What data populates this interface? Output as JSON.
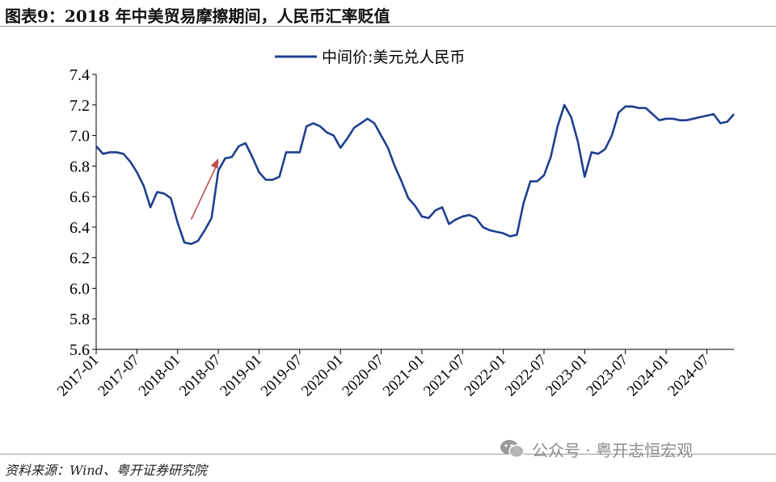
{
  "header": {
    "title": "图表9：2018 年中美贸易摩擦期间，人民币汇率贬值"
  },
  "footer": {
    "source": "资料来源：Wind、粤开证券研究院"
  },
  "watermark": {
    "text": "公众号 · 粤开志恒宏观",
    "icon": "wechat-icon"
  },
  "chart_data": {
    "type": "line",
    "title": "",
    "xlabel": "",
    "ylabel": "",
    "x_tick_labels": [
      "2017-01",
      "2017-07",
      "2018-01",
      "2018-07",
      "2019-01",
      "2019-07",
      "2020-01",
      "2020-07",
      "2021-01",
      "2021-07",
      "2022-01",
      "2022-07",
      "2023-01",
      "2023-07",
      "2024-01",
      "2024-07"
    ],
    "y_tick_labels": [
      "5.6",
      "5.8",
      "6.0",
      "6.2",
      "6.4",
      "6.6",
      "6.8",
      "7.0",
      "7.2",
      "7.4"
    ],
    "ylim": [
      5.6,
      7.4
    ],
    "xlim": [
      "2017-01",
      "2024-11"
    ],
    "grid": false,
    "legend": {
      "position": "top-center",
      "entries": [
        "中间价:美元兑人民币"
      ]
    },
    "annotation": {
      "type": "arrow",
      "color": "#c0504d",
      "from": [
        "2018-03",
        6.45
      ],
      "to": [
        "2018-07",
        6.85
      ]
    },
    "series": [
      {
        "name": "中间价:美元兑人民币",
        "color": "#1f3f8f",
        "points": [
          [
            "2017-01",
            6.93
          ],
          [
            "2017-02",
            6.88
          ],
          [
            "2017-03",
            6.89
          ],
          [
            "2017-04",
            6.89
          ],
          [
            "2017-05",
            6.88
          ],
          [
            "2017-06",
            6.83
          ],
          [
            "2017-07",
            6.76
          ],
          [
            "2017-08",
            6.67
          ],
          [
            "2017-09",
            6.53
          ],
          [
            "2017-10",
            6.63
          ],
          [
            "2017-11",
            6.62
          ],
          [
            "2017-12",
            6.59
          ],
          [
            "2018-01",
            6.43
          ],
          [
            "2018-02",
            6.3
          ],
          [
            "2018-03",
            6.29
          ],
          [
            "2018-04",
            6.31
          ],
          [
            "2018-05",
            6.38
          ],
          [
            "2018-06",
            6.46
          ],
          [
            "2018-07",
            6.77
          ],
          [
            "2018-08",
            6.85
          ],
          [
            "2018-09",
            6.86
          ],
          [
            "2018-10",
            6.93
          ],
          [
            "2018-11",
            6.95
          ],
          [
            "2018-12",
            6.86
          ],
          [
            "2019-01",
            6.76
          ],
          [
            "2019-02",
            6.71
          ],
          [
            "2019-03",
            6.71
          ],
          [
            "2019-04",
            6.73
          ],
          [
            "2019-05",
            6.89
          ],
          [
            "2019-06",
            6.89
          ],
          [
            "2019-07",
            6.89
          ],
          [
            "2019-08",
            7.06
          ],
          [
            "2019-09",
            7.08
          ],
          [
            "2019-10",
            7.06
          ],
          [
            "2019-11",
            7.02
          ],
          [
            "2019-12",
            7.0
          ],
          [
            "2020-01",
            6.92
          ],
          [
            "2020-02",
            6.98
          ],
          [
            "2020-03",
            7.05
          ],
          [
            "2020-04",
            7.08
          ],
          [
            "2020-05",
            7.11
          ],
          [
            "2020-06",
            7.08
          ],
          [
            "2020-07",
            7.0
          ],
          [
            "2020-08",
            6.92
          ],
          [
            "2020-09",
            6.8
          ],
          [
            "2020-10",
            6.7
          ],
          [
            "2020-11",
            6.59
          ],
          [
            "2020-12",
            6.54
          ],
          [
            "2021-01",
            6.47
          ],
          [
            "2021-02",
            6.46
          ],
          [
            "2021-03",
            6.51
          ],
          [
            "2021-04",
            6.53
          ],
          [
            "2021-05",
            6.42
          ],
          [
            "2021-06",
            6.45
          ],
          [
            "2021-07",
            6.47
          ],
          [
            "2021-08",
            6.48
          ],
          [
            "2021-09",
            6.46
          ],
          [
            "2021-10",
            6.4
          ],
          [
            "2021-11",
            6.38
          ],
          [
            "2021-12",
            6.37
          ],
          [
            "2022-01",
            6.36
          ],
          [
            "2022-02",
            6.34
          ],
          [
            "2022-03",
            6.35
          ],
          [
            "2022-04",
            6.56
          ],
          [
            "2022-05",
            6.7
          ],
          [
            "2022-06",
            6.7
          ],
          [
            "2022-07",
            6.74
          ],
          [
            "2022-08",
            6.86
          ],
          [
            "2022-09",
            7.06
          ],
          [
            "2022-10",
            7.2
          ],
          [
            "2022-11",
            7.12
          ],
          [
            "2022-12",
            6.96
          ],
          [
            "2023-01",
            6.73
          ],
          [
            "2023-02",
            6.89
          ],
          [
            "2023-03",
            6.88
          ],
          [
            "2023-04",
            6.91
          ],
          [
            "2023-05",
            7.0
          ],
          [
            "2023-06",
            7.15
          ],
          [
            "2023-07",
            7.19
          ],
          [
            "2023-08",
            7.19
          ],
          [
            "2023-09",
            7.18
          ],
          [
            "2023-10",
            7.18
          ],
          [
            "2023-11",
            7.14
          ],
          [
            "2023-12",
            7.1
          ],
          [
            "2024-01",
            7.11
          ],
          [
            "2024-02",
            7.11
          ],
          [
            "2024-03",
            7.1
          ],
          [
            "2024-04",
            7.1
          ],
          [
            "2024-05",
            7.11
          ],
          [
            "2024-06",
            7.12
          ],
          [
            "2024-07",
            7.13
          ],
          [
            "2024-08",
            7.14
          ],
          [
            "2024-09",
            7.08
          ],
          [
            "2024-10",
            7.09
          ],
          [
            "2024-11",
            7.14
          ]
        ]
      }
    ]
  }
}
